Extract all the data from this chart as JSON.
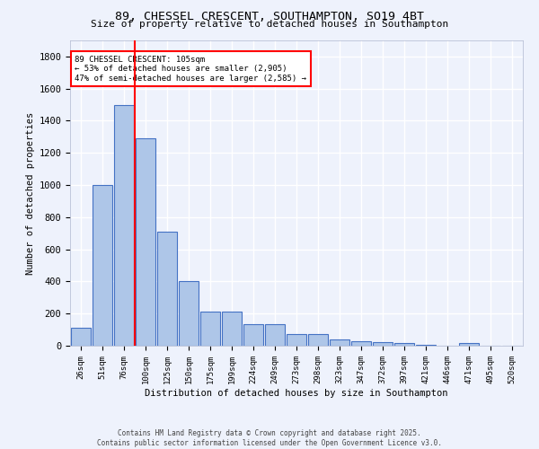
{
  "title": "89, CHESSEL CRESCENT, SOUTHAMPTON, SO19 4BT",
  "subtitle": "Size of property relative to detached houses in Southampton",
  "xlabel": "Distribution of detached houses by size in Southampton",
  "ylabel": "Number of detached properties",
  "categories": [
    "26sqm",
    "51sqm",
    "76sqm",
    "100sqm",
    "125sqm",
    "150sqm",
    "175sqm",
    "199sqm",
    "224sqm",
    "249sqm",
    "273sqm",
    "298sqm",
    "323sqm",
    "347sqm",
    "372sqm",
    "397sqm",
    "421sqm",
    "446sqm",
    "471sqm",
    "495sqm",
    "520sqm"
  ],
  "values": [
    110,
    1000,
    1500,
    1290,
    710,
    400,
    215,
    215,
    135,
    135,
    75,
    70,
    40,
    30,
    25,
    15,
    5,
    0,
    15,
    0,
    0
  ],
  "bar_color": "#aec6e8",
  "bar_edge_color": "#4472c4",
  "background_color": "#eef2fc",
  "grid_color": "#ffffff",
  "vline_color": "red",
  "annotation_text": "89 CHESSEL CRESCENT: 105sqm\n← 53% of detached houses are smaller (2,905)\n47% of semi-detached houses are larger (2,585) →",
  "annotation_box_color": "white",
  "annotation_box_edge": "red",
  "footer_line1": "Contains HM Land Registry data © Crown copyright and database right 2025.",
  "footer_line2": "Contains public sector information licensed under the Open Government Licence v3.0.",
  "ylim": [
    0,
    1900
  ],
  "yticks": [
    0,
    200,
    400,
    600,
    800,
    1000,
    1200,
    1400,
    1600,
    1800
  ]
}
